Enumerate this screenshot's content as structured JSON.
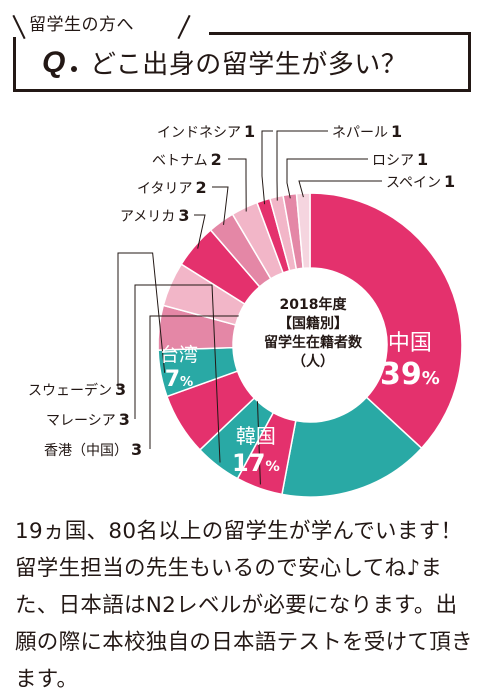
{
  "header": {
    "tag": "留学生の方へ",
    "q_letter": "Q",
    "question": "どこ出身の留学生が多い？"
  },
  "chart_center": {
    "line1": "2018年度",
    "line2": "【国籍別】",
    "line3": "留学生在籍者数",
    "line4": "（人）"
  },
  "chart_data": {
    "type": "pie",
    "variant": "donut",
    "title": "2018年度 【国籍別】 留学生在籍者数 （人）",
    "slices": [
      {
        "name": "中国",
        "percent_label": "39",
        "unit": "%",
        "share": 0.39,
        "color": "#E4316D",
        "label_position": "inside"
      },
      {
        "name": "韓国",
        "percent_label": "17",
        "unit": "%",
        "share": 0.17,
        "color": "#29A9A5",
        "label_position": "inside"
      },
      {
        "name": "香港（中国）",
        "count": "3",
        "share": 0.0525,
        "color": "#E4316D",
        "label_position": "outside"
      },
      {
        "name": "マレーシア",
        "count": "3",
        "share": 0.0525,
        "color": "#29A9A5",
        "label_position": "outside"
      },
      {
        "name": "台湾",
        "percent_label": "7",
        "unit": "%",
        "share": 0.07,
        "color": "#E4316D",
        "label_position": "inside"
      },
      {
        "name": "スウェーデン",
        "count": "3",
        "share": 0.0525,
        "color": "#29A9A5",
        "label_position": "outside"
      },
      {
        "name": "",
        "share": 0.05,
        "color": "#E487A6",
        "label_position": "none"
      },
      {
        "name": "",
        "share": 0.05,
        "color": "#F2B6C8",
        "label_position": "none"
      },
      {
        "name": "アメリカ",
        "count": "3",
        "share": 0.05,
        "color": "#E4316D",
        "label_position": "outside"
      },
      {
        "name": "イタリア",
        "count": "2",
        "share": 0.03,
        "color": "#E487A6",
        "label_position": "outside"
      },
      {
        "name": "ベトナム",
        "count": "2",
        "share": 0.03,
        "color": "#F2B6C8",
        "label_position": "outside"
      },
      {
        "name": "インドネシア",
        "count": "1",
        "share": 0.015,
        "color": "#E4316D",
        "label_position": "outside"
      },
      {
        "name": "ネパール",
        "count": "1",
        "share": 0.015,
        "color": "#F2B6C8",
        "label_position": "outside"
      },
      {
        "name": "ロシア",
        "count": "1",
        "share": 0.015,
        "color": "#E487A6",
        "label_position": "outside"
      },
      {
        "name": "スペイン",
        "count": "1",
        "share": 0.015,
        "color": "#F5D5DF",
        "label_position": "outside"
      }
    ]
  },
  "colors": {
    "pink": "#E4316D",
    "teal": "#29A9A5",
    "mid_pink": "#E487A6",
    "light_pink": "#F2B6C8",
    "pale_pink": "#F5D5DF",
    "text": "#231815"
  },
  "body_text": "19ヵ国、80名以上の留学生が学んでいます！ 留学生担当の先生もいるので安心してね♪また、日本語はN2レベルが必要になります。出願の際に本校独自の日本語テストを受けて頂きます。"
}
